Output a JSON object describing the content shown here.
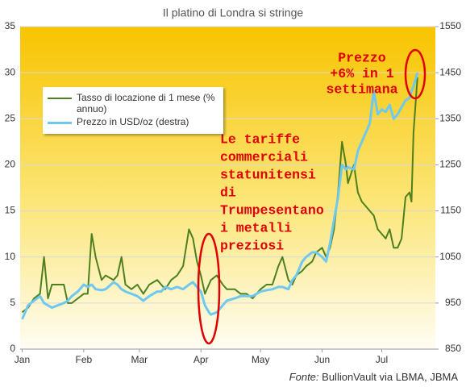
{
  "chart_data": {
    "type": "line",
    "title": "Il platino di Londra si stringe",
    "xlim": [
      0,
      209
    ],
    "xticks": [
      {
        "value": 1,
        "label": "Jan"
      },
      {
        "value": 32,
        "label": "Feb"
      },
      {
        "value": 60,
        "label": "Mar"
      },
      {
        "value": 91,
        "label": "Apr"
      },
      {
        "value": 121,
        "label": "May"
      },
      {
        "value": 152,
        "label": "Jun"
      },
      {
        "value": 182,
        "label": "Jul"
      }
    ],
    "ylim": [
      0,
      35
    ],
    "yticks": [
      0,
      5,
      10,
      15,
      20,
      25,
      30,
      35
    ],
    "y2lim": [
      850,
      1550
    ],
    "y2ticks": [
      850,
      950,
      1050,
      1150,
      1250,
      1350,
      1450,
      1550
    ],
    "grid": true,
    "x": [
      1,
      4,
      7,
      10,
      12,
      14,
      16,
      19,
      22,
      24,
      26,
      29,
      32,
      34,
      36,
      38,
      41,
      43,
      47,
      49,
      51,
      53,
      56,
      59,
      62,
      65,
      69,
      71,
      73,
      76,
      79,
      82,
      85,
      87,
      89,
      91,
      93,
      95,
      96,
      99,
      102,
      104,
      108,
      111,
      114,
      117,
      121,
      124,
      127,
      130,
      132,
      135,
      137,
      139,
      142,
      144,
      147,
      149,
      152,
      154,
      156,
      158,
      160,
      162,
      164,
      165,
      168,
      170,
      172,
      174,
      176,
      178,
      180,
      182,
      184,
      186,
      188,
      190,
      192,
      194,
      196,
      197,
      198,
      200
    ],
    "series": [
      {
        "name": "Tasso di locazione di 1 mese (% annuo)",
        "color": "#4f7f1f",
        "axis": "y",
        "values": [
          4,
          4.5,
          5.5,
          6,
          10,
          5.5,
          7,
          7,
          7,
          5,
          5,
          5.5,
          6,
          6,
          12.5,
          10,
          7.5,
          8,
          7.5,
          8,
          10,
          7,
          6.5,
          7,
          6,
          7,
          7.5,
          7,
          6.5,
          7.5,
          8,
          9,
          13,
          12,
          9.5,
          8,
          6,
          7,
          7.5,
          8,
          7,
          6.5,
          6.5,
          6,
          6,
          5.5,
          6.5,
          7,
          7,
          9,
          10,
          7.5,
          7,
          8,
          8.5,
          9,
          9.5,
          10.5,
          11,
          10,
          11,
          13,
          17,
          22.5,
          20,
          18,
          20,
          17,
          16,
          15.5,
          15,
          14.5,
          13,
          12.5,
          12,
          13,
          11,
          11,
          12,
          16.5,
          17,
          16,
          23.5,
          29.5
        ]
      },
      {
        "name": "Prezzo in USD/oz (destra)",
        "color": "#6ec8f0",
        "axis": "y2",
        "values": [
          915,
          945,
          955,
          965,
          950,
          945,
          940,
          945,
          950,
          955,
          965,
          975,
          990,
          985,
          990,
          980,
          978,
          980,
          995,
          990,
          980,
          975,
          970,
          965,
          955,
          965,
          975,
          975,
          985,
          980,
          985,
          980,
          990,
          995,
          985,
          975,
          945,
          930,
          925,
          930,
          945,
          955,
          960,
          965,
          965,
          965,
          975,
          978,
          980,
          985,
          985,
          980,
          1000,
          1010,
          1040,
          1050,
          1060,
          1060,
          1050,
          1040,
          1080,
          1130,
          1180,
          1250,
          1240,
          1245,
          1240,
          1280,
          1300,
          1320,
          1340,
          1410,
          1360,
          1370,
          1365,
          1380,
          1350,
          1360,
          1375,
          1390,
          1395,
          1410,
          1420,
          1450
        ]
      }
    ],
    "annotations": [
      {
        "lines": [
          "Le tariffe",
          "commerciali",
          "statunitensi",
          "di",
          "Trumpesentano",
          "i metalli",
          "preziosi"
        ]
      },
      {
        "lines": [
          "Prezzo",
          "+6% in 1",
          "settimana"
        ]
      }
    ],
    "source_label": "Fonte:",
    "source": "BullionVault via LBMA, JBMA"
  }
}
